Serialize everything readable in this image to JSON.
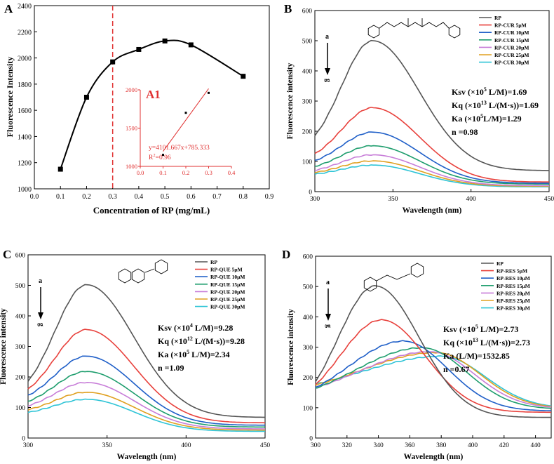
{
  "chart_data": [
    {
      "panel": "A",
      "type": "line",
      "xlabel": "Concentration of RP (mg/mL)",
      "ylabel": "Fluorescence Intensity",
      "xlim": [
        0.0,
        0.9
      ],
      "ylim": [
        1000,
        2400
      ],
      "xticks": [
        "0.0",
        "0.1",
        "0.2",
        "0.3",
        "0.4",
        "0.5",
        "0.6",
        "0.7",
        "0.8",
        "0.9"
      ],
      "yticks": [
        "1000",
        "1200",
        "1400",
        "1600",
        "1800",
        "2000",
        "2200",
        "2400"
      ],
      "x": [
        0.1,
        0.2,
        0.3,
        0.4,
        0.5,
        0.6,
        0.8
      ],
      "y": [
        1150,
        1700,
        1970,
        2065,
        2130,
        2100,
        1860
      ],
      "vline_x": 0.3,
      "vline_color": "#e03030",
      "inset": {
        "label": "A1",
        "xlim": [
          0.0,
          0.4
        ],
        "ylim": [
          1000,
          2000
        ],
        "xticks": [
          "0.0",
          "0.1",
          "0.2",
          "0.3",
          "0.4"
        ],
        "yticks": [
          "1000",
          "1500",
          "2000"
        ],
        "x": [
          0.1,
          0.2,
          0.3
        ],
        "y": [
          1150,
          1700,
          1960
        ],
        "equation": "y=4101.667x+785.333",
        "r2_prefix": "R",
        "r2_sup": "2",
        "r2_suffix": "=0.96",
        "color": "#e03030"
      }
    },
    {
      "panel": "B",
      "type": "line",
      "xlabel": "Wavelength (nm)",
      "ylabel": "Fluorescence intensity",
      "xlim": [
        300,
        450
      ],
      "ylim": [
        0,
        600
      ],
      "xticks": [
        "300",
        "350",
        "400",
        "450"
      ],
      "yticks": [
        "0",
        "100",
        "200",
        "300",
        "400",
        "500",
        "600"
      ],
      "arrow_top": "a",
      "arrow_bottom": "g",
      "legend": [
        "RP",
        "RP-CUR 5μM",
        "RP-CUR 10μM",
        "RP-CUR 15μM",
        "RP-CUR 20μM",
        "RP-CUR 25μM",
        "RP-CUR 30μM"
      ],
      "series_peaks": [
        500,
        278,
        197,
        152,
        122,
        102,
        88
      ],
      "series_tails": [
        70,
        32,
        28,
        25,
        20,
        18,
        16
      ],
      "peak_x": 337,
      "stats": [
        {
          "pre": "Ksv (×10",
          "sup": "5",
          "post": " L/M)=1.69"
        },
        {
          "pre": "Kq (×10",
          "sup": "13",
          "post": " L/(M·s))=1.69"
        },
        {
          "pre": "Ka (×10",
          "sup": "5",
          "post": "L/M)=1.29"
        },
        {
          "pre": "n =0.98",
          "sup": "",
          "post": ""
        }
      ]
    },
    {
      "panel": "C",
      "type": "line",
      "xlabel": "Wavelength (nm)",
      "ylabel": "Fluorescence intensity",
      "xlim": [
        300,
        450
      ],
      "ylim": [
        0,
        600
      ],
      "xticks": [
        "300",
        "350",
        "400",
        "450"
      ],
      "yticks": [
        "0",
        "100",
        "200",
        "300",
        "400",
        "500",
        "600"
      ],
      "arrow_top": "a",
      "arrow_bottom": "g",
      "legend": [
        "RP",
        "RP-QUE 5μM",
        "RP-QUE 10μM",
        "RP-QUE 15μM",
        "RP-QUE 20μM",
        "RP-QUE 25μM",
        "RP-QUE 30μM"
      ],
      "series_peaks": [
        502,
        355,
        268,
        218,
        182,
        150,
        127
      ],
      "series_tails": [
        68,
        50,
        42,
        36,
        30,
        26,
        22
      ],
      "peak_x": 337,
      "stats": [
        {
          "pre": "Ksv (×10",
          "sup": "4",
          "post": " L/M)=9.28"
        },
        {
          "pre": "Kq (×10",
          "sup": "12",
          "post": " L/(M·s))=9.28"
        },
        {
          "pre": "Ka (×10",
          "sup": "5",
          "post": " L/M)=2.34"
        },
        {
          "pre": "n =1.09",
          "sup": "",
          "post": ""
        }
      ]
    },
    {
      "panel": "D",
      "type": "line",
      "xlabel": "Wavelength (nm)",
      "ylabel": "Fluorescence intensity",
      "xlim": [
        300,
        450
      ],
      "ylim": [
        0,
        600
      ],
      "xticks": [
        "300",
        "320",
        "340",
        "360",
        "380",
        "400",
        "420",
        "440"
      ],
      "yticks": [
        "0",
        "100",
        "200",
        "300",
        "400",
        "500",
        "600"
      ],
      "arrow_top": "a",
      "arrow_bottom": "g",
      "legend": [
        "RP",
        "RP-RES 5μM",
        "RP-RES 10μM",
        "RP-RES 15μM",
        "RP-RES 20μM",
        "RP-RES 25μM",
        "RP-RES 30μM"
      ],
      "series_peaks": [
        502,
        390,
        320,
        298,
        285,
        282,
        270
      ],
      "series_peak_x": [
        338,
        342,
        356,
        368,
        373,
        377,
        380
      ],
      "series_tails": [
        68,
        85,
        90,
        98,
        102,
        104,
        106
      ],
      "stats": [
        {
          "pre": "Ksv (×10",
          "sup": "5",
          "post": " L/M)=2.73"
        },
        {
          "pre": "Kq (×10",
          "sup": "13",
          "post": " L/(M·s))=2.73"
        },
        {
          "pre": "Ka (L/M)=1532.85",
          "sup": "",
          "post": ""
        },
        {
          "pre": "n =0.67",
          "sup": "",
          "post": ""
        }
      ]
    }
  ],
  "series_colors": [
    "#555555",
    "#e8413c",
    "#1f5fc8",
    "#1f9e6e",
    "#c77dd8",
    "#e0a020",
    "#2ec4d6"
  ],
  "colors": {
    "axis": "#000000",
    "guide": "#e03030",
    "curve": "#000000"
  }
}
